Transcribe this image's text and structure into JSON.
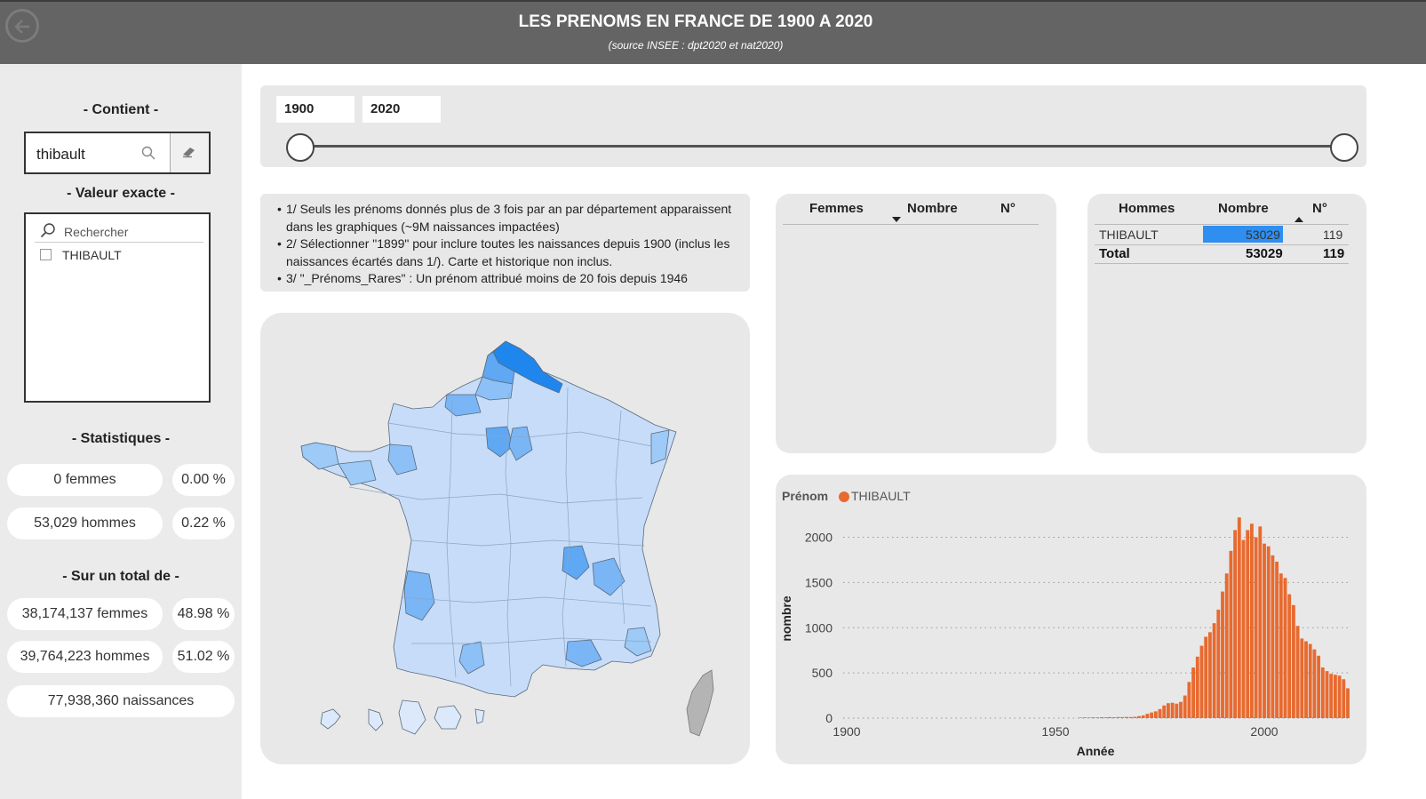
{
  "header": {
    "title": "LES PRENOMS EN FRANCE DE 1900 A 2020",
    "subtitle": "(source INSEE : dpt2020 et nat2020)"
  },
  "sidebar": {
    "contains_title": "- Contient -",
    "search_value": "thibault",
    "exact_title": "- Valeur exacte -",
    "exact_search_placeholder": "Rechercher",
    "exact_items": [
      "THIBAULT"
    ],
    "stats_title": "- Statistiques -",
    "stats": {
      "women": "0 femmes",
      "women_pct": "0.00 %",
      "men": "53,029 hommes",
      "men_pct": "0.22 %"
    },
    "total_title": "- Sur un total de -",
    "totals": {
      "women": "38,174,137 femmes",
      "women_pct": "48.98 %",
      "men": "39,764,223 hommes",
      "men_pct": "51.02 %",
      "births": "77,938,360 naissances"
    }
  },
  "slider": {
    "start": "1900",
    "end": "2020"
  },
  "notes": [
    "1/ Seuls les prénoms donnés plus de 3 fois par an par département apparaissent dans les graphiques (~9M naissances impactées)",
    "2/ Sélectionner \"1899\" pour inclure toutes les naissances depuis 1900 (inclus les naissances écartés dans 1/). Carte et historique non inclus.",
    "3/ \"_Prénoms_Rares\" : Un prénom attribué moins de 20 fois depuis 1946"
  ],
  "women_table": {
    "col_name": "Femmes",
    "col_count": "Nombre",
    "col_rank": "N°"
  },
  "men_table": {
    "col_name": "Hommes",
    "col_count": "Nombre",
    "col_rank": "N°",
    "rows": [
      {
        "name": "THIBAULT",
        "count": "53029",
        "rank": "119"
      }
    ],
    "total": {
      "label": "Total",
      "count": "53029",
      "rank": "119"
    }
  },
  "colors": {
    "accent": "#2e8ff0",
    "bar": "#e86a2f",
    "header": "#646464"
  },
  "chart_data": {
    "type": "bar",
    "legend_title": "Prénom",
    "series": [
      {
        "name": "THIBAULT"
      }
    ],
    "xlabel": "Année",
    "ylabel": "nombre",
    "xlim": [
      1900,
      2020
    ],
    "ylim": [
      0,
      2300
    ],
    "xticks": [
      1900,
      1950,
      2000
    ],
    "yticks": [
      0,
      500,
      1000,
      1500,
      2000
    ],
    "grid": true,
    "x": [
      1956,
      1957,
      1958,
      1959,
      1960,
      1961,
      1962,
      1963,
      1964,
      1965,
      1966,
      1967,
      1968,
      1969,
      1970,
      1971,
      1972,
      1973,
      1974,
      1975,
      1976,
      1977,
      1978,
      1979,
      1980,
      1981,
      1982,
      1983,
      1984,
      1985,
      1986,
      1987,
      1988,
      1989,
      1990,
      1991,
      1992,
      1993,
      1994,
      1995,
      1996,
      1997,
      1998,
      1999,
      2000,
      2001,
      2002,
      2003,
      2004,
      2005,
      2006,
      2007,
      2008,
      2009,
      2010,
      2011,
      2012,
      2013,
      2014,
      2015,
      2016,
      2017,
      2018,
      2019,
      2020
    ],
    "values": [
      6,
      8,
      7,
      9,
      8,
      10,
      9,
      11,
      10,
      12,
      11,
      13,
      12,
      14,
      22,
      30,
      48,
      62,
      75,
      100,
      140,
      165,
      170,
      160,
      180,
      250,
      400,
      560,
      680,
      800,
      900,
      950,
      1050,
      1200,
      1400,
      1600,
      1850,
      2080,
      2220,
      1970,
      2080,
      2150,
      2000,
      2120,
      1930,
      1900,
      1800,
      1730,
      1600,
      1550,
      1370,
      1250,
      1020,
      880,
      850,
      820,
      760,
      690,
      560,
      520,
      490,
      480,
      470,
      430,
      330
    ]
  }
}
